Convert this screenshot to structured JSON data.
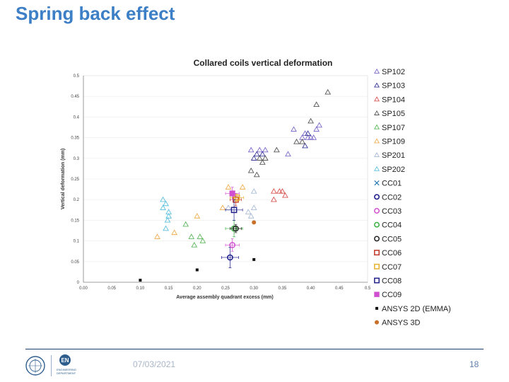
{
  "slide": {
    "title": "Spring back effect",
    "date": "07/03/2021",
    "page": "18",
    "logo_text": "EN",
    "logo_subtitle": "ENGINEERING DEPARTMENT"
  },
  "chart_data": {
    "type": "scatter",
    "title": "Collared coils vertical deformation",
    "xlabel": "Average assembly quadrant excess (mm)",
    "ylabel": "Vertical deformation (mm)",
    "xlim": [
      0,
      0.5
    ],
    "ylim": [
      0,
      0.5
    ],
    "xticks": [
      "0.00",
      "0.05",
      "0.10",
      "0.15",
      "0.20",
      "0.25",
      "0.30",
      "0.35",
      "0.40",
      "0.45",
      "0.5"
    ],
    "yticks": [
      "0",
      "0.05",
      "0.1",
      "0.15",
      "0.2",
      "0.25",
      "0.3",
      "0.35",
      "0.4",
      "0.45",
      "0.5"
    ],
    "legend_position": "right",
    "series": [
      {
        "name": "SP102",
        "marker": "triangle",
        "color": "#7b68c8",
        "points": [
          [
            0.295,
            0.32
          ],
          [
            0.31,
            0.32
          ],
          [
            0.32,
            0.32
          ],
          [
            0.36,
            0.31
          ],
          [
            0.37,
            0.37
          ],
          [
            0.385,
            0.35
          ],
          [
            0.39,
            0.36
          ],
          [
            0.395,
            0.35
          ],
          [
            0.4,
            0.35
          ],
          [
            0.405,
            0.35
          ],
          [
            0.415,
            0.38
          ],
          [
            0.41,
            0.37
          ]
        ]
      },
      {
        "name": "SP103",
        "marker": "triangle",
        "color": "#3a3a9a",
        "points": [
          [
            0.3,
            0.3
          ],
          [
            0.305,
            0.31
          ],
          [
            0.315,
            0.31
          ],
          [
            0.395,
            0.36
          ],
          [
            0.39,
            0.33
          ]
        ]
      },
      {
        "name": "SP104",
        "marker": "triangle",
        "color": "#d9534f",
        "points": [
          [
            0.335,
            0.22
          ],
          [
            0.345,
            0.22
          ],
          [
            0.35,
            0.22
          ],
          [
            0.355,
            0.21
          ],
          [
            0.335,
            0.2
          ]
        ]
      },
      {
        "name": "SP105",
        "marker": "triangle",
        "color": "#555555",
        "points": [
          [
            0.295,
            0.27
          ],
          [
            0.305,
            0.26
          ],
          [
            0.31,
            0.3
          ],
          [
            0.315,
            0.29
          ],
          [
            0.32,
            0.3
          ],
          [
            0.34,
            0.32
          ],
          [
            0.375,
            0.34
          ],
          [
            0.385,
            0.34
          ],
          [
            0.4,
            0.39
          ],
          [
            0.41,
            0.43
          ],
          [
            0.43,
            0.46
          ]
        ]
      },
      {
        "name": "SP107",
        "marker": "triangle",
        "color": "#5cb85c",
        "points": [
          [
            0.18,
            0.14
          ],
          [
            0.19,
            0.11
          ],
          [
            0.195,
            0.09
          ],
          [
            0.205,
            0.11
          ],
          [
            0.21,
            0.1
          ]
        ]
      },
      {
        "name": "SP109",
        "marker": "triangle",
        "color": "#f0ad4e",
        "points": [
          [
            0.13,
            0.11
          ],
          [
            0.16,
            0.12
          ],
          [
            0.2,
            0.16
          ],
          [
            0.245,
            0.18
          ],
          [
            0.255,
            0.23
          ],
          [
            0.28,
            0.23
          ]
        ]
      },
      {
        "name": "SP201",
        "marker": "triangle",
        "color": "#a9bcd8",
        "points": [
          [
            0.29,
            0.17
          ],
          [
            0.295,
            0.16
          ],
          [
            0.3,
            0.18
          ],
          [
            0.3,
            0.22
          ],
          [
            0.255,
            0.18
          ]
        ]
      },
      {
        "name": "SP202",
        "marker": "triangle",
        "color": "#5bc0de",
        "points": [
          [
            0.14,
            0.2
          ],
          [
            0.14,
            0.18
          ],
          [
            0.145,
            0.19
          ],
          [
            0.15,
            0.17
          ],
          [
            0.148,
            0.15
          ],
          [
            0.145,
            0.13
          ],
          [
            0.15,
            0.16
          ]
        ]
      },
      {
        "name": "CC01",
        "marker": "x",
        "color": "#2e7fb8",
        "points": []
      },
      {
        "name": "CC02",
        "marker": "circle",
        "color": "#1a1a8a",
        "points": [
          [
            0.258,
            0.06
          ]
        ],
        "xerr": 0.015,
        "yerr": 0.025
      },
      {
        "name": "CC03",
        "marker": "circle",
        "color": "#d04fd0",
        "points": [
          [
            0.262,
            0.09
          ]
        ],
        "xerr": 0.012,
        "yerr": 0.015
      },
      {
        "name": "CC04",
        "marker": "circle",
        "color": "#3cb043",
        "points": [
          [
            0.265,
            0.13
          ]
        ],
        "xerr": 0.015,
        "yerr": 0.02
      },
      {
        "name": "CC05",
        "marker": "circle",
        "color": "#222222",
        "points": [
          [
            0.268,
            0.13
          ]
        ],
        "xerr": 0.01,
        "yerr": 0.01
      },
      {
        "name": "CC06",
        "marker": "square",
        "color": "#c0392b",
        "points": [
          [
            0.268,
            0.2
          ]
        ],
        "xerr": 0.01,
        "yerr": 0.015
      },
      {
        "name": "CC07",
        "marker": "square",
        "color": "#e8b030",
        "points": [
          [
            0.27,
            0.205
          ]
        ],
        "xerr": 0.012,
        "yerr": 0.01
      },
      {
        "name": "CC08",
        "marker": "square",
        "color": "#22228a",
        "points": [
          [
            0.265,
            0.175
          ]
        ],
        "xerr": 0.015,
        "yerr": 0.025
      },
      {
        "name": "CC09",
        "marker": "squarefilled",
        "color": "#d04fd0",
        "points": [
          [
            0.262,
            0.215
          ]
        ],
        "xerr": 0.012,
        "yerr": 0.015
      },
      {
        "name": "ANSYS 2D (EMMA)",
        "marker": "smallsquare",
        "color": "#111111",
        "points": [
          [
            0.1,
            0.005
          ],
          [
            0.2,
            0.03
          ],
          [
            0.3,
            0.055
          ]
        ]
      },
      {
        "name": "ANSYS 3D",
        "marker": "dot",
        "color": "#c8702a",
        "points": [
          [
            0.3,
            0.145
          ]
        ]
      }
    ]
  }
}
